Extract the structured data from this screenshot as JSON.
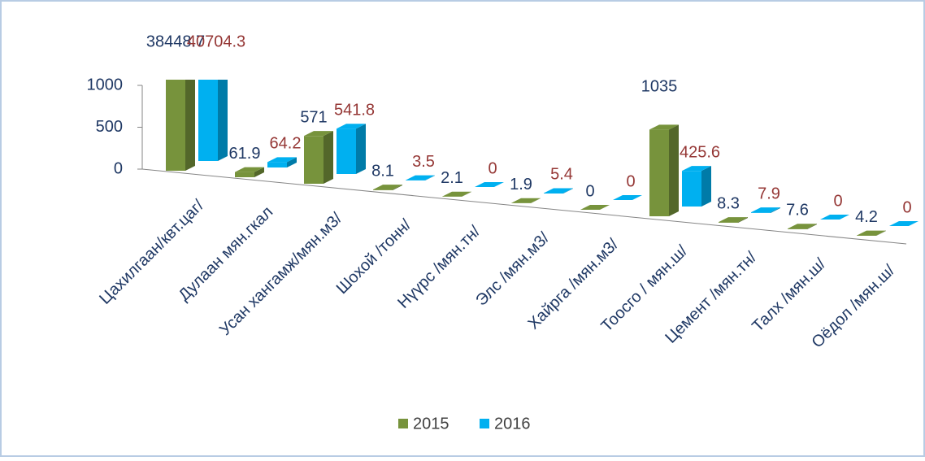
{
  "chart_data": {
    "type": "bar3d",
    "categories": [
      "Цахилгаан/квт.цаг/",
      "Дулаан мян.гкал",
      "Усан хангамж/мян.м3/",
      "Шохой /тонн/",
      "Нүүрс /мян.тн/",
      "Элс /мян.м3/",
      "Хайрга /мян.м3/",
      "Тоосго / мян.ш/",
      "Цемент /мян.тн/",
      "Талх /мян.ш/",
      "Оёдол /мян.ш/"
    ],
    "series": [
      {
        "name": "2015",
        "color": "#77933c",
        "label_color": "#1f3864",
        "values": [
          38448.7,
          61.9,
          571,
          8.1,
          2.1,
          1.9,
          0,
          1035,
          8.3,
          7.6,
          4.2
        ]
      },
      {
        "name": "2016",
        "color": "#00b0f0",
        "label_color": "#953735",
        "values": [
          40704.3,
          64.2,
          541.8,
          3.5,
          0,
          5.4,
          0,
          425.6,
          7.9,
          0,
          0
        ]
      }
    ],
    "ylim": [
      0,
      1000
    ],
    "yticks": [
      0,
      500,
      1000
    ],
    "legend": "bottom"
  }
}
